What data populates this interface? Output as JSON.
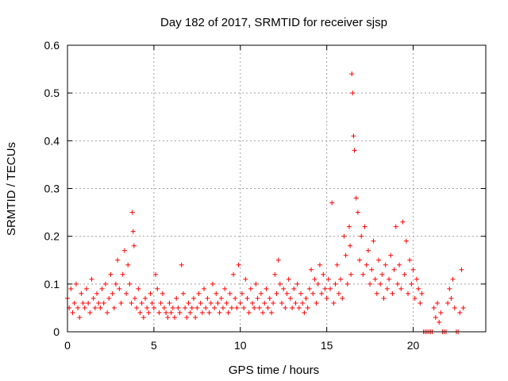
{
  "chart_data": {
    "type": "scatter",
    "title": "Day 182 of 2017, SRMTID for receiver sjsp",
    "xlabel": "GPS time / hours",
    "ylabel": "SRMTID / TECUs",
    "xlim": [
      0,
      24.2
    ],
    "ylim": [
      0,
      0.6
    ],
    "xticks": [
      0,
      5,
      10,
      15,
      20
    ],
    "yticks": [
      0,
      0.1,
      0.2,
      0.3,
      0.4,
      0.5,
      0.6
    ],
    "xtick_labels": [
      "0",
      "5",
      "10",
      "15",
      "20"
    ],
    "ytick_labels": [
      "0",
      "0.1",
      "0.2",
      "0.3",
      "0.4",
      "0.5",
      "0.6"
    ],
    "grid": true,
    "marker": "+",
    "color": "#ff0000",
    "series": [
      {
        "name": "SRMTID",
        "x": [
          0.0,
          0.1,
          0.2,
          0.3,
          0.4,
          0.5,
          0.6,
          0.7,
          0.8,
          0.9,
          1.0,
          1.1,
          1.2,
          1.3,
          1.4,
          1.5,
          1.6,
          1.7,
          1.8,
          1.9,
          2.0,
          2.1,
          2.2,
          2.3,
          2.4,
          2.5,
          2.6,
          2.7,
          2.8,
          2.9,
          3.0,
          3.1,
          3.2,
          3.3,
          3.4,
          3.5,
          3.6,
          3.7,
          3.75,
          3.8,
          3.85,
          3.9,
          4.0,
          4.1,
          4.2,
          4.3,
          4.4,
          4.5,
          4.6,
          4.7,
          4.8,
          4.9,
          5.0,
          5.1,
          5.2,
          5.3,
          5.4,
          5.5,
          5.6,
          5.7,
          5.8,
          5.9,
          6.0,
          6.1,
          6.2,
          6.3,
          6.4,
          6.5,
          6.6,
          6.7,
          6.8,
          6.9,
          7.0,
          7.1,
          7.2,
          7.3,
          7.4,
          7.5,
          7.6,
          7.7,
          7.8,
          7.9,
          8.0,
          8.1,
          8.2,
          8.3,
          8.4,
          8.5,
          8.6,
          8.7,
          8.8,
          8.9,
          9.0,
          9.1,
          9.2,
          9.3,
          9.4,
          9.5,
          9.6,
          9.7,
          9.8,
          9.9,
          10.0,
          10.1,
          10.2,
          10.3,
          10.4,
          10.5,
          10.6,
          10.7,
          10.8,
          10.9,
          11.0,
          11.1,
          11.2,
          11.3,
          11.4,
          11.5,
          11.6,
          11.7,
          11.8,
          11.9,
          12.0,
          12.1,
          12.2,
          12.3,
          12.4,
          12.5,
          12.6,
          12.7,
          12.8,
          12.9,
          13.0,
          13.1,
          13.2,
          13.3,
          13.4,
          13.5,
          13.6,
          13.7,
          13.8,
          13.9,
          14.0,
          14.1,
          14.2,
          14.3,
          14.4,
          14.5,
          14.6,
          14.7,
          14.8,
          14.9,
          15.0,
          15.1,
          15.2,
          15.3,
          15.4,
          15.5,
          15.6,
          15.7,
          15.8,
          15.9,
          16.0,
          16.1,
          16.2,
          16.3,
          16.35,
          16.4,
          16.45,
          16.5,
          16.55,
          16.6,
          16.7,
          16.8,
          16.9,
          17.0,
          17.1,
          17.2,
          17.3,
          17.4,
          17.5,
          17.6,
          17.7,
          17.8,
          17.9,
          18.0,
          18.1,
          18.2,
          18.3,
          18.4,
          18.5,
          18.6,
          18.7,
          18.8,
          18.9,
          19.0,
          19.1,
          19.2,
          19.3,
          19.4,
          19.5,
          19.6,
          19.7,
          19.8,
          19.9,
          20.0,
          20.1,
          20.2,
          20.3,
          20.4,
          20.5,
          20.6,
          20.7,
          20.8,
          20.9,
          21.0,
          21.1,
          21.2,
          21.3,
          21.4,
          21.5,
          21.6,
          21.7,
          21.8,
          21.9,
          22.0,
          22.1,
          22.2,
          22.3,
          22.4,
          22.5,
          22.6,
          22.7,
          22.8,
          22.9
        ],
        "y": [
          0.07,
          0.05,
          0.09,
          0.04,
          0.06,
          0.1,
          0.05,
          0.03,
          0.08,
          0.06,
          0.05,
          0.09,
          0.06,
          0.04,
          0.11,
          0.07,
          0.05,
          0.08,
          0.06,
          0.05,
          0.09,
          0.06,
          0.1,
          0.04,
          0.07,
          0.12,
          0.08,
          0.05,
          0.1,
          0.15,
          0.09,
          0.06,
          0.12,
          0.17,
          0.08,
          0.14,
          0.1,
          0.06,
          0.25,
          0.21,
          0.18,
          0.07,
          0.05,
          0.09,
          0.04,
          0.06,
          0.03,
          0.07,
          0.05,
          0.04,
          0.08,
          0.06,
          0.05,
          0.12,
          0.09,
          0.04,
          0.06,
          0.08,
          0.05,
          0.04,
          0.03,
          0.06,
          0.04,
          0.05,
          0.03,
          0.07,
          0.05,
          0.04,
          0.14,
          0.08,
          0.05,
          0.03,
          0.06,
          0.04,
          0.05,
          0.07,
          0.03,
          0.05,
          0.08,
          0.06,
          0.04,
          0.09,
          0.05,
          0.07,
          0.04,
          0.06,
          0.1,
          0.05,
          0.08,
          0.06,
          0.04,
          0.07,
          0.05,
          0.09,
          0.06,
          0.04,
          0.08,
          0.05,
          0.12,
          0.07,
          0.05,
          0.14,
          0.06,
          0.08,
          0.05,
          0.11,
          0.07,
          0.04,
          0.09,
          0.06,
          0.05,
          0.1,
          0.07,
          0.05,
          0.08,
          0.04,
          0.06,
          0.09,
          0.05,
          0.07,
          0.04,
          0.06,
          0.12,
          0.08,
          0.15,
          0.1,
          0.06,
          0.09,
          0.05,
          0.08,
          0.11,
          0.07,
          0.05,
          0.09,
          0.06,
          0.1,
          0.05,
          0.08,
          0.06,
          0.04,
          0.07,
          0.05,
          0.09,
          0.13,
          0.08,
          0.11,
          0.06,
          0.1,
          0.14,
          0.08,
          0.12,
          0.09,
          0.07,
          0.11,
          0.09,
          0.27,
          0.06,
          0.1,
          0.14,
          0.08,
          0.11,
          0.07,
          0.2,
          0.16,
          0.1,
          0.22,
          0.18,
          0.12,
          0.54,
          0.5,
          0.41,
          0.38,
          0.28,
          0.25,
          0.15,
          0.2,
          0.12,
          0.22,
          0.14,
          0.17,
          0.1,
          0.13,
          0.19,
          0.11,
          0.08,
          0.15,
          0.1,
          0.12,
          0.07,
          0.14,
          0.09,
          0.11,
          0.16,
          0.08,
          0.13,
          0.22,
          0.1,
          0.14,
          0.09,
          0.23,
          0.12,
          0.19,
          0.08,
          0.15,
          0.1,
          0.13,
          0.07,
          0.11,
          0.09,
          0.06,
          0.08,
          0.0,
          0.0,
          0.0,
          0.0,
          0.0,
          0.0,
          0.05,
          0.03,
          0.06,
          0.02,
          0.04,
          0.0,
          0.0,
          0.0,
          0.06,
          0.09,
          0.07,
          0.11,
          0.05,
          0.0,
          0.0,
          0.04,
          0.13,
          0.05
        ]
      }
    ]
  }
}
